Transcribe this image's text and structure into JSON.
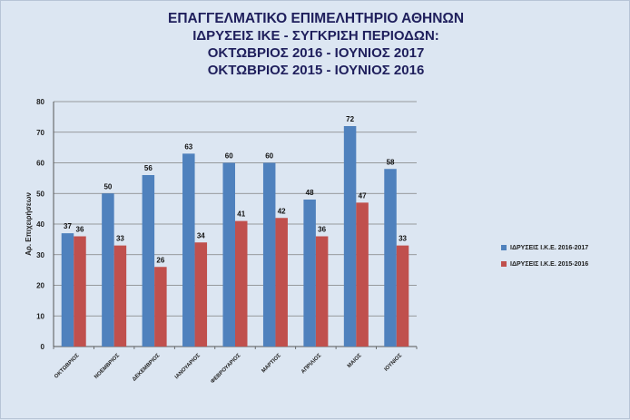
{
  "colors": {
    "series1": "#4f81bd",
    "series2": "#c0504d",
    "grid": "#7f7f7f",
    "background": "#dce6f2"
  },
  "chart_data": {
    "type": "bar",
    "title_lines": [
      "ΕΠΑΓΓΕΛΜΑΤΙΚΟ ΕΠΙΜΕΛΗΤΗΡΙΟ ΑΘΗΝΩΝ",
      "ΙΔΡΥΣΕΙΣ ΙΚΕ  - ΣΥΓΚΡΙΣΗ ΠΕΡΙΟΔΩΝ:",
      "ΟΚΤΩΒΡΙΟΣ 2016 - ΙΟΥΝΙΟΣ 2017",
      "ΟΚΤΩΒΡΙΟΣ 2015 - ΙΟΥΝΙΟΣ 2016"
    ],
    "xlabel": "",
    "ylabel": "Αρ. Επιχειρήσεων",
    "ylim": [
      0,
      80
    ],
    "yticks": [
      0,
      10,
      20,
      30,
      40,
      50,
      60,
      70,
      80
    ],
    "grid": true,
    "legend_position": "right",
    "categories": [
      "ΟΚΤΩΒΡΙΟΣ",
      "ΝΟΕΜΒΡΙΟΣ",
      "ΔΕΚΕΜΒΡΙΟΣ",
      "ΙΑΝΟΥΑΡΙΟΣ",
      "ΦΕΒΡΟΥΑΡΙΟΣ",
      "ΜΑΡΤΙΟΣ",
      "ΑΠΡΙΛΙΟΣ",
      "ΜΑΙΟΣ",
      "ΙΟΥΝΙΟΣ"
    ],
    "series": [
      {
        "name": "ΙΔΡΥΣΕΙΣ Ι.Κ.Ε. 2016-2017",
        "values": [
          37,
          50,
          56,
          63,
          60,
          60,
          48,
          72,
          58
        ]
      },
      {
        "name": "ΙΔΡΥΣΕΙΣ Ι.Κ.Ε. 2015-2016",
        "values": [
          36,
          33,
          26,
          34,
          41,
          42,
          36,
          47,
          33
        ]
      }
    ]
  }
}
